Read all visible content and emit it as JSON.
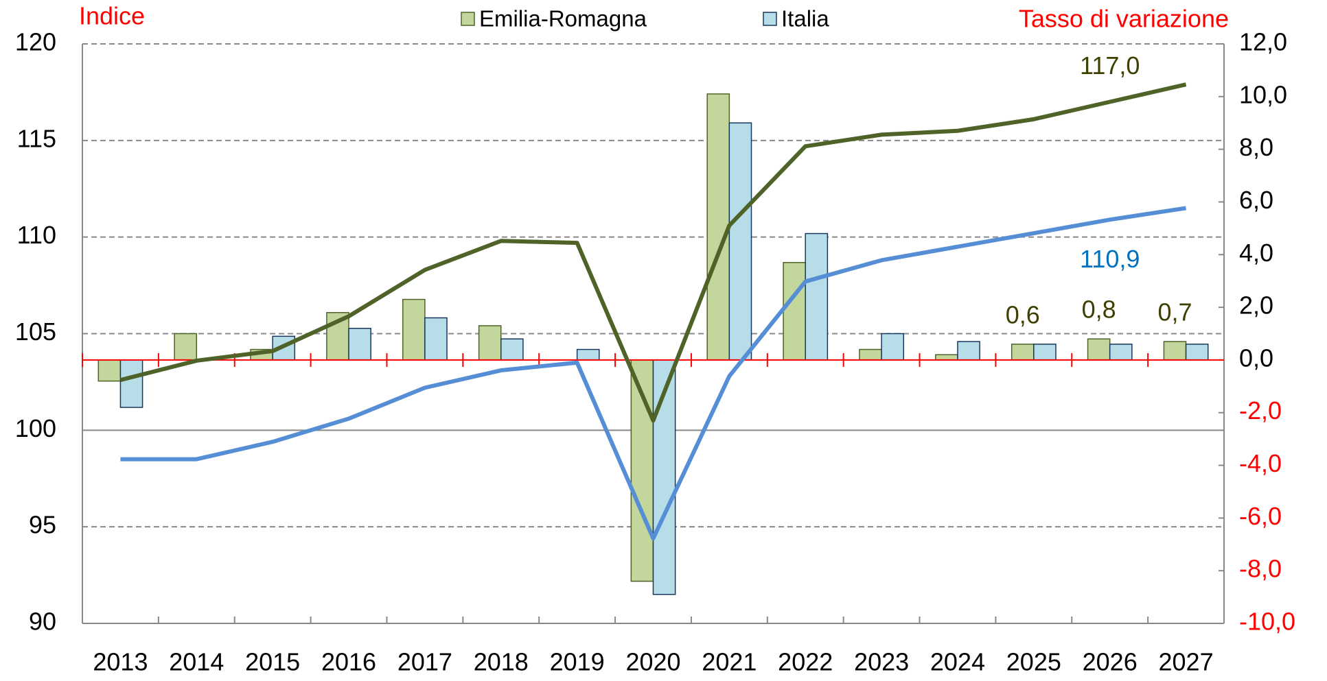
{
  "chart_data": {
    "type": "bar",
    "ylabel": "Indice",
    "y2label": "Tasso di variazione",
    "categories": [
      "2013",
      "2014",
      "2015",
      "2016",
      "2017",
      "2018",
      "2019",
      "2020",
      "2021",
      "2022",
      "2023",
      "2024",
      "2025",
      "2026",
      "2027"
    ],
    "series": [
      {
        "name": "Emilia-Romagna",
        "type": "bar",
        "axis": "y2",
        "color": "#c3d69b",
        "edge": "#4f6228",
        "values": [
          -0.8,
          1.0,
          0.4,
          1.8,
          2.3,
          1.3,
          0.0,
          -8.4,
          10.1,
          3.7,
          0.4,
          0.2,
          0.6,
          0.8,
          0.7
        ],
        "value_labels": [
          null,
          null,
          null,
          null,
          null,
          null,
          null,
          null,
          null,
          null,
          null,
          null,
          "0,6",
          "0,8",
          "0,7"
        ],
        "label_color": "#3f3f00"
      },
      {
        "name": "Italia",
        "type": "bar",
        "axis": "y2",
        "color": "#b7dee8",
        "edge": "#17375e",
        "values": [
          -1.8,
          0.0,
          0.9,
          1.2,
          1.6,
          0.8,
          0.4,
          -8.9,
          9.0,
          4.8,
          1.0,
          0.7,
          0.6,
          0.6,
          0.6
        ]
      },
      {
        "type": "line",
        "color": "#4f6228",
        "values": [
          102.6,
          103.6,
          104.1,
          105.9,
          108.3,
          109.8,
          109.7,
          100.5,
          110.6,
          114.7,
          115.3,
          115.5,
          116.1,
          117.0,
          117.9
        ],
        "value_labels": [
          null,
          null,
          null,
          null,
          null,
          null,
          null,
          null,
          null,
          null,
          null,
          null,
          null,
          "117,0",
          null
        ],
        "label_color": "#3f3f00"
      },
      {
        "type": "line",
        "color": "#558ed5",
        "values": [
          98.5,
          98.5,
          99.4,
          100.6,
          102.2,
          103.1,
          103.5,
          94.4,
          102.8,
          107.7,
          108.8,
          109.5,
          110.2,
          110.9,
          111.5
        ],
        "value_labels": [
          null,
          null,
          null,
          null,
          null,
          null,
          null,
          null,
          null,
          null,
          null,
          null,
          null,
          "110,9",
          null
        ],
        "label_color": "#0070c0"
      }
    ],
    "ylim": [
      90,
      120
    ],
    "yticks": [
      90,
      95,
      100,
      105,
      110,
      115,
      120
    ],
    "y2lim": [
      -10,
      12
    ],
    "y2ticks": [
      {
        "value": -10,
        "label": "-10,0"
      },
      {
        "value": -8,
        "label": "-8,0"
      },
      {
        "value": -6,
        "label": "-6,0"
      },
      {
        "value": -4,
        "label": "-4,0"
      },
      {
        "value": -2,
        "label": "-2,0"
      },
      {
        "value": 0,
        "label": "0,0"
      },
      {
        "value": 2,
        "label": "2,0"
      },
      {
        "value": 4,
        "label": "4,0"
      },
      {
        "value": 6,
        "label": "6,0"
      },
      {
        "value": 8,
        "label": "8,0"
      },
      {
        "value": 10,
        "label": "10,0"
      },
      {
        "value": 12,
        "label": "12,0"
      }
    ],
    "grid": true,
    "legend": "top"
  }
}
